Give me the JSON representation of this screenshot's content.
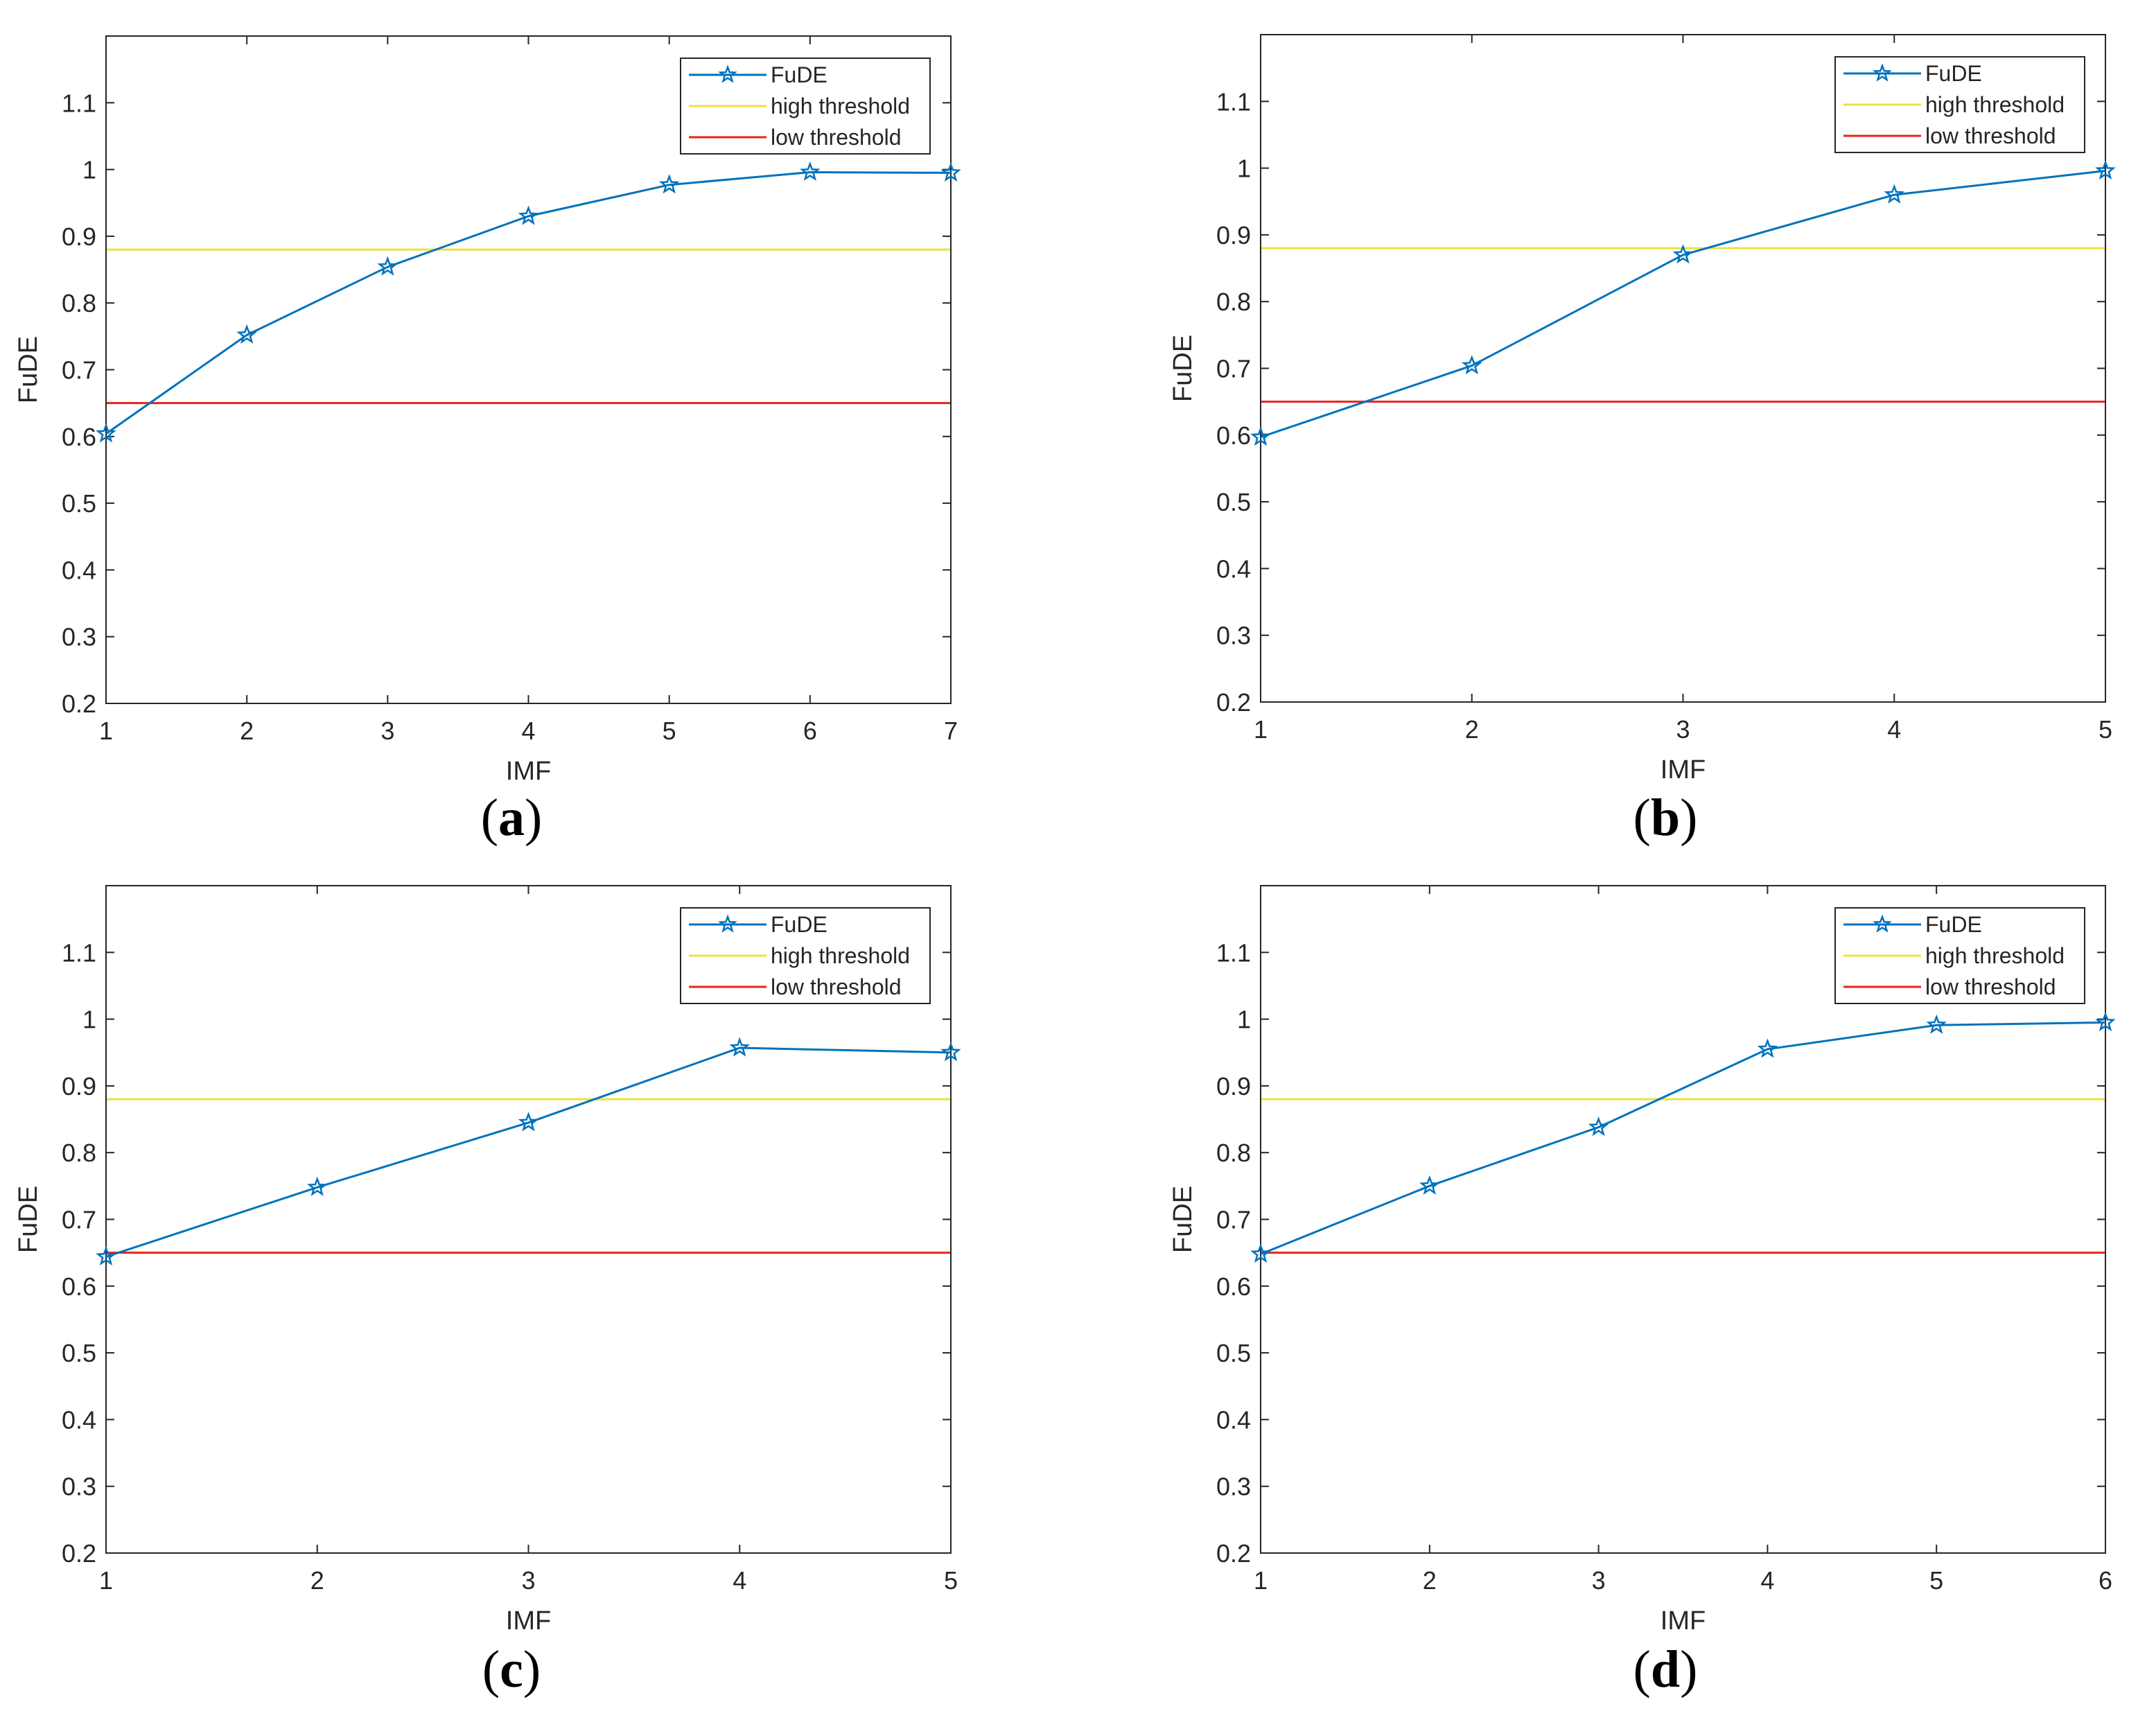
{
  "figure": {
    "panels": [
      {
        "id": "a",
        "caption_open": "(",
        "caption_label": "a",
        "caption_close": ")"
      },
      {
        "id": "b",
        "caption_open": "(",
        "caption_label": "b",
        "caption_close": ")"
      },
      {
        "id": "c",
        "caption_open": "(",
        "caption_label": "c",
        "caption_close": ")"
      },
      {
        "id": "d",
        "caption_open": "(",
        "caption_label": "d",
        "caption_close": ")"
      }
    ]
  },
  "colors": {
    "fude": "#0072BD",
    "high": "#EDE23C",
    "low": "#E8231D",
    "axes": "#262626"
  },
  "chart_data": [
    {
      "type": "line",
      "panel": "a",
      "xlabel": "IMF",
      "ylabel": "FuDE",
      "xlim": [
        1,
        7
      ],
      "ylim": [
        0.2,
        1.2
      ],
      "x_ticks": [
        1,
        2,
        3,
        4,
        5,
        6,
        7
      ],
      "y_ticks": [
        0.2,
        0.3,
        0.4,
        0.5,
        0.6,
        0.7,
        0.8,
        0.9,
        1,
        1.1
      ],
      "y_tick_labels": [
        "0.2",
        "0.3",
        "0.4",
        "0.5",
        "0.6",
        "0.7",
        "0.8",
        "0.9",
        "1",
        "1.1"
      ],
      "legend_position": "top-right",
      "series": [
        {
          "name": "FuDE",
          "kind": "line-marker",
          "marker": "pentagram",
          "x": [
            1,
            2,
            3,
            4,
            5,
            6,
            7
          ],
          "values": [
            0.604,
            0.752,
            0.854,
            0.93,
            0.977,
            0.996,
            0.995
          ]
        },
        {
          "name": "high threshold",
          "kind": "hline",
          "value": 0.88
        },
        {
          "name": "low threshold",
          "kind": "hline",
          "value": 0.65
        }
      ]
    },
    {
      "type": "line",
      "panel": "b",
      "xlabel": "IMF",
      "ylabel": "FuDE",
      "xlim": [
        1,
        5
      ],
      "ylim": [
        0.2,
        1.2
      ],
      "x_ticks": [
        1,
        2,
        3,
        4,
        5
      ],
      "y_ticks": [
        0.2,
        0.3,
        0.4,
        0.5,
        0.6,
        0.7,
        0.8,
        0.9,
        1,
        1.1
      ],
      "y_tick_labels": [
        "0.2",
        "0.3",
        "0.4",
        "0.5",
        "0.6",
        "0.7",
        "0.8",
        "0.9",
        "1",
        "1.1"
      ],
      "legend_position": "top-right",
      "series": [
        {
          "name": "FuDE",
          "kind": "line-marker",
          "marker": "pentagram",
          "x": [
            1,
            2,
            3,
            4,
            5
          ],
          "values": [
            0.597,
            0.704,
            0.87,
            0.96,
            0.996
          ]
        },
        {
          "name": "high threshold",
          "kind": "hline",
          "value": 0.88
        },
        {
          "name": "low threshold",
          "kind": "hline",
          "value": 0.65
        }
      ]
    },
    {
      "type": "line",
      "panel": "c",
      "xlabel": "IMF",
      "ylabel": "FuDE",
      "xlim": [
        1,
        5
      ],
      "ylim": [
        0.2,
        1.2
      ],
      "x_ticks": [
        1,
        2,
        3,
        4,
        5
      ],
      "y_ticks": [
        0.2,
        0.3,
        0.4,
        0.5,
        0.6,
        0.7,
        0.8,
        0.9,
        1,
        1.1
      ],
      "y_tick_labels": [
        "0.2",
        "0.3",
        "0.4",
        "0.5",
        "0.6",
        "0.7",
        "0.8",
        "0.9",
        "1",
        "1.1"
      ],
      "legend_position": "top-right",
      "series": [
        {
          "name": "FuDE",
          "kind": "line-marker",
          "marker": "pentagram",
          "x": [
            1,
            2,
            3,
            4,
            5
          ],
          "values": [
            0.644,
            0.748,
            0.845,
            0.957,
            0.95
          ]
        },
        {
          "name": "high threshold",
          "kind": "hline",
          "value": 0.88
        },
        {
          "name": "low threshold",
          "kind": "hline",
          "value": 0.65
        }
      ]
    },
    {
      "type": "line",
      "panel": "d",
      "xlabel": "IMF",
      "ylabel": "FuDE",
      "xlim": [
        1,
        6
      ],
      "ylim": [
        0.2,
        1.2
      ],
      "x_ticks": [
        1,
        2,
        3,
        4,
        5,
        6
      ],
      "y_ticks": [
        0.2,
        0.3,
        0.4,
        0.5,
        0.6,
        0.7,
        0.8,
        0.9,
        1,
        1.1
      ],
      "y_tick_labels": [
        "0.2",
        "0.3",
        "0.4",
        "0.5",
        "0.6",
        "0.7",
        "0.8",
        "0.9",
        "1",
        "1.1"
      ],
      "legend_position": "top-right",
      "series": [
        {
          "name": "FuDE",
          "kind": "line-marker",
          "marker": "pentagram",
          "x": [
            1,
            2,
            3,
            4,
            5,
            6
          ],
          "values": [
            0.648,
            0.75,
            0.838,
            0.955,
            0.991,
            0.995
          ]
        },
        {
          "name": "high threshold",
          "kind": "hline",
          "value": 0.88
        },
        {
          "name": "low threshold",
          "kind": "hline",
          "value": 0.65
        }
      ]
    }
  ]
}
